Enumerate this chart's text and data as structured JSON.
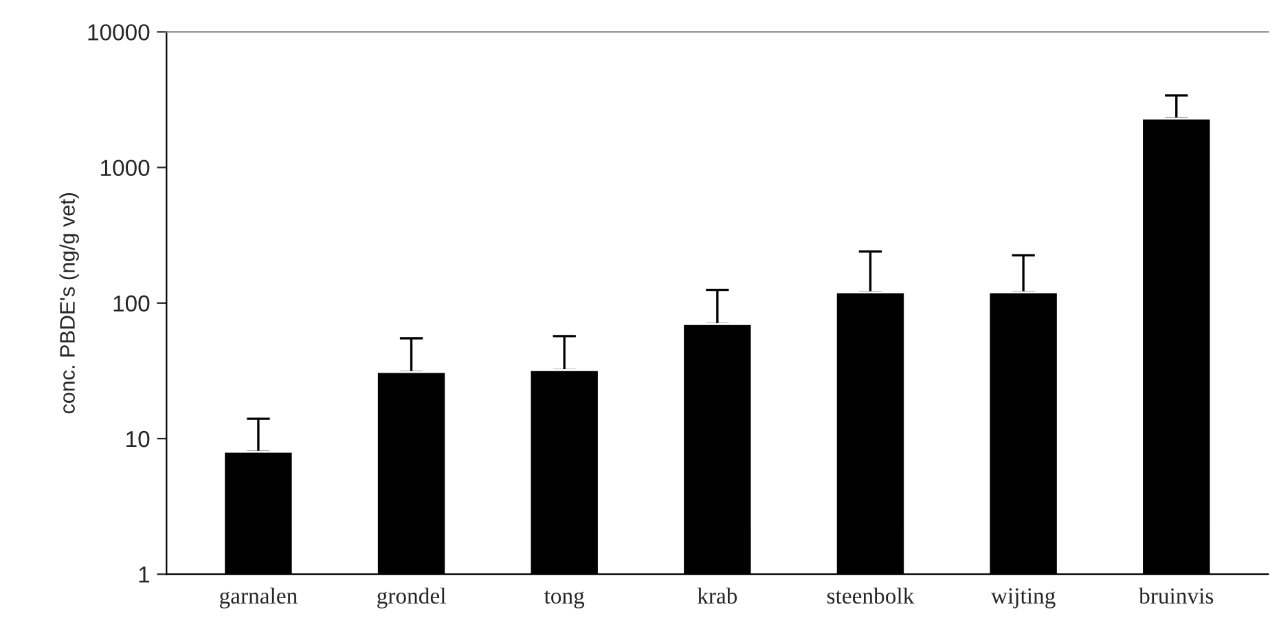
{
  "chart_data": {
    "type": "bar",
    "ylabel": "conc. PBDE's (ng/g vet)",
    "categories": [
      "garnalen",
      "grondel",
      "tong",
      "krab",
      "steenbolk",
      "wijting",
      "bruinvis"
    ],
    "values": [
      8,
      31,
      32,
      70,
      120,
      120,
      2300
    ],
    "errors": [
      [
        8,
        14
      ],
      [
        31,
        55
      ],
      [
        32,
        57
      ],
      [
        70,
        125
      ],
      [
        120,
        240
      ],
      [
        120,
        225
      ],
      [
        2300,
        3400
      ]
    ],
    "color": "#000000",
    "log": "y",
    "ylim": [
      1,
      10000
    ],
    "yticks": [
      1,
      10,
      100,
      1000,
      10000
    ],
    "grid": false,
    "legend": false
  }
}
